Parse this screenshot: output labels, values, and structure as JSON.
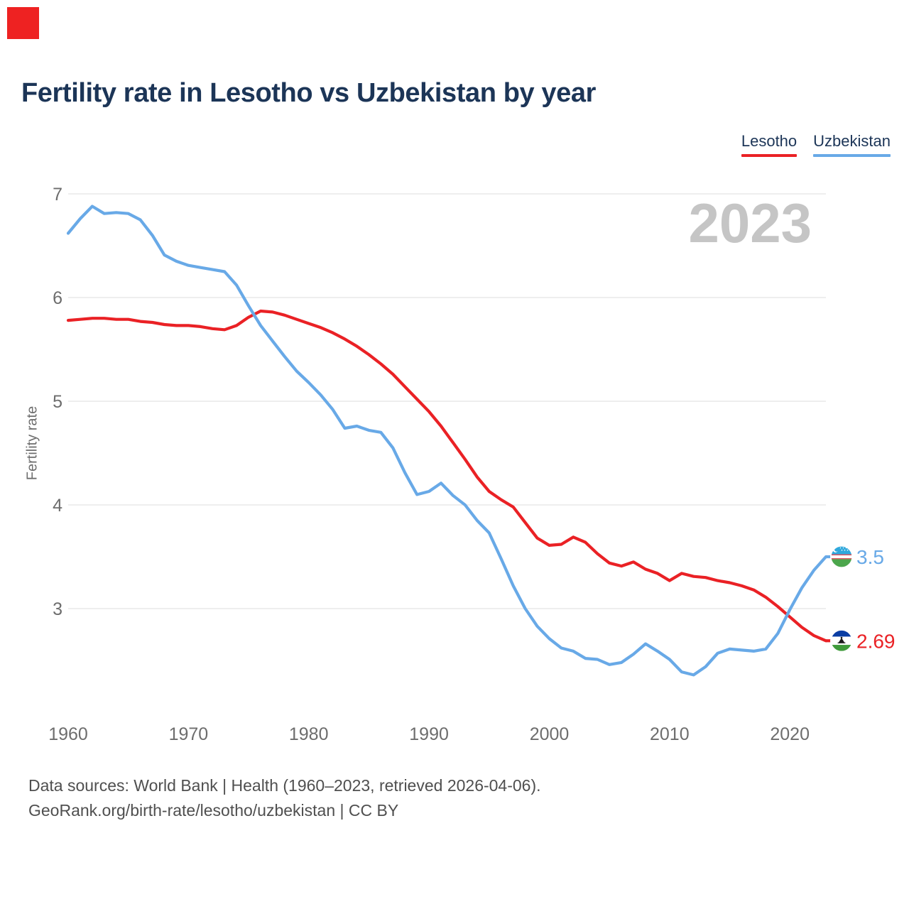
{
  "page": {
    "title": "Fertility rate in Lesotho vs Uzbekistan by year",
    "watermark": "2023",
    "footer_line1": "Data sources: World Bank | Health (1960–2023, retrieved 2026-04-06).",
    "footer_line2": "GeoRank.org/birth-rate/lesotho/uzbekistan | CC BY"
  },
  "legend": {
    "position": "top-right",
    "items": [
      {
        "label": "Lesotho",
        "color": "#ea2125"
      },
      {
        "label": "Uzbekistan",
        "color": "#68a9e7"
      }
    ]
  },
  "chart_data": {
    "type": "line",
    "title": "Fertility rate in Lesotho vs Uzbekistan by year",
    "xlabel": "",
    "ylabel": "Fertility rate",
    "grid": true,
    "legend_position": "top-right",
    "xlim": [
      1960,
      2023
    ],
    "ylim": [
      2.3,
      7.05
    ],
    "x_ticks": [
      1960,
      1970,
      1980,
      1990,
      2000,
      2010,
      2020
    ],
    "y_ticks": [
      7,
      6,
      5,
      4,
      3
    ],
    "watermark": "2023",
    "x": [
      1960,
      1961,
      1962,
      1963,
      1964,
      1965,
      1966,
      1967,
      1968,
      1969,
      1970,
      1971,
      1972,
      1973,
      1974,
      1975,
      1976,
      1977,
      1978,
      1979,
      1980,
      1981,
      1982,
      1983,
      1984,
      1985,
      1986,
      1987,
      1988,
      1989,
      1990,
      1991,
      1992,
      1993,
      1994,
      1995,
      1996,
      1997,
      1998,
      1999,
      2000,
      2001,
      2002,
      2003,
      2004,
      2005,
      2006,
      2007,
      2008,
      2009,
      2010,
      2011,
      2012,
      2013,
      2014,
      2015,
      2016,
      2017,
      2018,
      2019,
      2020,
      2021,
      2022,
      2023
    ],
    "series": [
      {
        "name": "Lesotho",
        "color": "#ea2125",
        "flag": "lesotho",
        "end_label": "2.69",
        "values": [
          5.78,
          5.79,
          5.8,
          5.8,
          5.79,
          5.79,
          5.77,
          5.76,
          5.74,
          5.73,
          5.73,
          5.72,
          5.7,
          5.69,
          5.73,
          5.81,
          5.87,
          5.86,
          5.83,
          5.79,
          5.75,
          5.71,
          5.66,
          5.6,
          5.53,
          5.45,
          5.36,
          5.26,
          5.14,
          5.02,
          4.9,
          4.76,
          4.6,
          4.44,
          4.27,
          4.13,
          4.05,
          3.98,
          3.83,
          3.68,
          3.61,
          3.62,
          3.69,
          3.64,
          3.53,
          3.44,
          3.41,
          3.45,
          3.38,
          3.34,
          3.27,
          3.34,
          3.31,
          3.3,
          3.27,
          3.25,
          3.22,
          3.18,
          3.11,
          3.02,
          2.92,
          2.82,
          2.74,
          2.69
        ]
      },
      {
        "name": "Uzbekistan",
        "color": "#68a9e7",
        "flag": "uzbekistan",
        "end_label": "3.5",
        "values": [
          6.62,
          6.76,
          6.88,
          6.81,
          6.82,
          6.81,
          6.75,
          6.6,
          6.41,
          6.35,
          6.31,
          6.29,
          6.27,
          6.25,
          6.12,
          5.92,
          5.73,
          5.58,
          5.43,
          5.29,
          5.18,
          5.06,
          4.92,
          4.74,
          4.76,
          4.72,
          4.7,
          4.55,
          4.31,
          4.1,
          4.13,
          4.21,
          4.09,
          4.0,
          3.85,
          3.73,
          3.48,
          3.22,
          3.0,
          2.83,
          2.71,
          2.62,
          2.59,
          2.52,
          2.51,
          2.46,
          2.48,
          2.56,
          2.66,
          2.59,
          2.51,
          2.39,
          2.36,
          2.44,
          2.57,
          2.61,
          2.6,
          2.59,
          2.61,
          2.76,
          2.99,
          3.2,
          3.37,
          3.5
        ]
      }
    ],
    "style": {
      "grid_color": "#e9e9e9",
      "tick_color": "#6d6d6d",
      "watermark_color": "#c5c5c5",
      "title_color": "#1c3557"
    }
  }
}
